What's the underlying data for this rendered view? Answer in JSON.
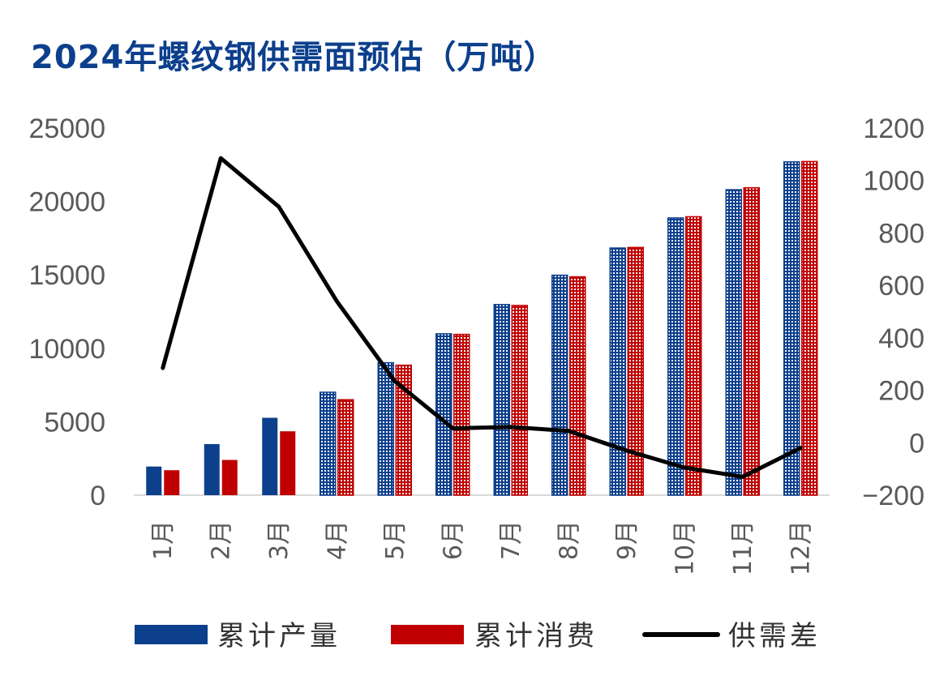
{
  "title": "2024年螺纹钢供需面预估（万吨）",
  "chart_data": {
    "type": "bar",
    "categories": [
      "1月",
      "2月",
      "3月",
      "4月",
      "5月",
      "6月",
      "7月",
      "8月",
      "9月",
      "10月",
      "11月",
      "12月"
    ],
    "series": [
      {
        "name": "累计产量",
        "axis": "left",
        "kind": "bar",
        "color": "#0c3f8c",
        "values": [
          1950,
          3480,
          5270,
          7010,
          9020,
          10990,
          12980,
          14980,
          16830,
          18880,
          20800,
          22700
        ]
      },
      {
        "name": "累计消费",
        "axis": "left",
        "kind": "bar",
        "color": "#c00000",
        "values": [
          1700,
          2400,
          4350,
          6500,
          8850,
          10950,
          12920,
          14870,
          16870,
          18960,
          20930,
          22720
        ]
      },
      {
        "name": "供需差",
        "axis": "right",
        "kind": "line",
        "color": "#000000",
        "values": [
          285,
          1085,
          900,
          540,
          235,
          55,
          60,
          45,
          -30,
          -95,
          -130,
          -20
        ]
      }
    ],
    "pattern_from_index": 3,
    "y_left": {
      "ticks": [
        "25000",
        "20000",
        "15000",
        "10000",
        "5000",
        "0"
      ],
      "min": 0,
      "max": 25000
    },
    "y_right": {
      "ticks": [
        "1200",
        "1000",
        "800",
        "600",
        "400",
        "200",
        "0",
        "−200"
      ],
      "min": -200,
      "max": 1200
    },
    "legend": {
      "position": "bottom",
      "items": [
        {
          "label": "累计产量",
          "type": "bar",
          "color": "#0c3f8c"
        },
        {
          "label": "累计消费",
          "type": "bar",
          "color": "#c00000"
        },
        {
          "label": "供需差",
          "type": "line",
          "color": "#000000"
        }
      ]
    },
    "grid": false
  }
}
